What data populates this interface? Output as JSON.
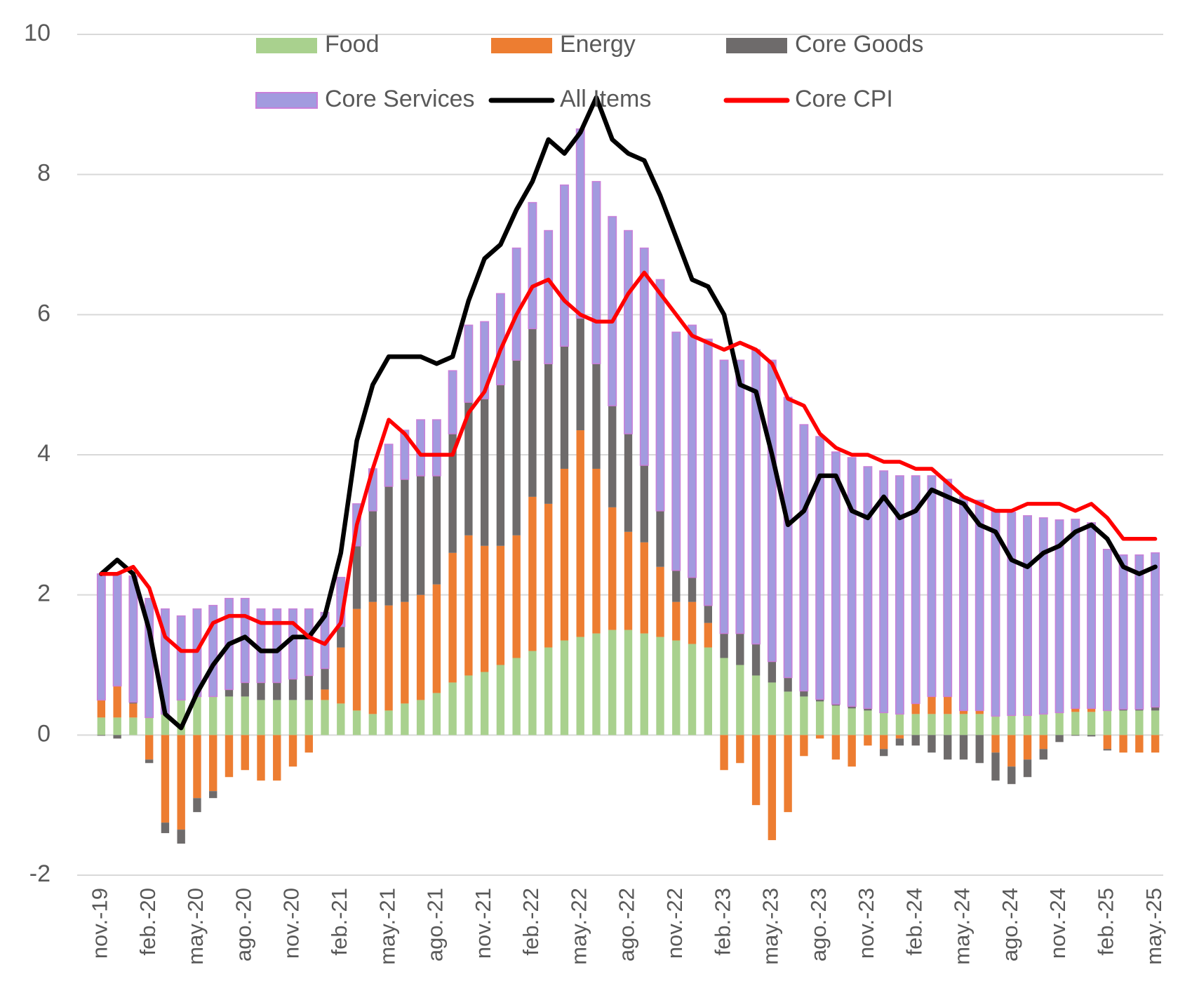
{
  "chart_data": {
    "type": "bar",
    "categories": [
      "nov.-19",
      null,
      null,
      "feb.-20",
      null,
      null,
      "may.-20",
      null,
      null,
      "ago.-20",
      null,
      null,
      "nov.-20",
      null,
      null,
      "feb.-21",
      null,
      null,
      "may.-21",
      null,
      null,
      "ago.-21",
      null,
      null,
      "nov.-21",
      null,
      null,
      "feb.-22",
      null,
      null,
      "may.-22",
      null,
      null,
      "ago.-22",
      null,
      null,
      "nov.-22",
      null,
      null,
      "feb.-23",
      null,
      null,
      "may.-23",
      null,
      null,
      "ago.-23",
      null,
      null,
      "nov.-23",
      null,
      null,
      "feb.-24",
      null,
      null,
      "may.-24",
      null,
      null,
      "ago.-24",
      null,
      null,
      "nov.-24",
      null,
      null,
      "feb.-25",
      null,
      null,
      "may.-25"
    ],
    "series": [
      {
        "name": "Food",
        "type": "bar",
        "color": "#a9d18e",
        "values": [
          0.25,
          0.25,
          0.25,
          0.25,
          0.3,
          0.5,
          0.55,
          0.55,
          0.55,
          0.55,
          0.5,
          0.5,
          0.5,
          0.5,
          0.5,
          0.45,
          0.35,
          0.3,
          0.35,
          0.45,
          0.5,
          0.6,
          0.75,
          0.85,
          0.9,
          1.0,
          1.1,
          1.2,
          1.25,
          1.35,
          1.4,
          1.45,
          1.5,
          1.5,
          1.45,
          1.4,
          1.35,
          1.3,
          1.25,
          1.1,
          1.0,
          0.85,
          0.75,
          0.62,
          0.55,
          0.48,
          0.42,
          0.38,
          0.35,
          0.32,
          0.3,
          0.3,
          0.3,
          0.3,
          0.3,
          0.3,
          0.27,
          0.28,
          0.28,
          0.3,
          0.32,
          0.33,
          0.33,
          0.35,
          0.35,
          0.35,
          0.35
        ]
      },
      {
        "name": "Energy",
        "type": "bar",
        "color": "#ed7d31",
        "values": [
          0.25,
          0.45,
          0.2,
          -0.35,
          -1.25,
          -1.35,
          -0.9,
          -0.8,
          -0.6,
          -0.5,
          -0.65,
          -0.65,
          -0.45,
          -0.25,
          0.15,
          0.8,
          1.45,
          1.6,
          1.5,
          1.45,
          1.5,
          1.55,
          1.85,
          2.0,
          1.8,
          1.7,
          1.75,
          2.2,
          2.05,
          2.45,
          2.95,
          2.35,
          1.75,
          1.4,
          1.3,
          1.0,
          0.55,
          0.6,
          0.35,
          -0.5,
          -0.4,
          -1.0,
          -1.5,
          -1.1,
          -0.3,
          -0.05,
          -0.35,
          -0.45,
          -0.15,
          -0.2,
          -0.05,
          0.15,
          0.25,
          0.25,
          0.05,
          0.05,
          -0.25,
          -0.45,
          -0.35,
          -0.2,
          0.0,
          0.05,
          0.05,
          -0.2,
          -0.25,
          -0.25,
          -0.25
        ]
      },
      {
        "name": "Core Goods",
        "type": "bar",
        "color": "#6e6b6b",
        "values": [
          -0.01,
          -0.05,
          0.02,
          -0.05,
          -0.15,
          -0.2,
          -0.2,
          -0.1,
          0.1,
          0.2,
          0.25,
          0.25,
          0.3,
          0.35,
          0.3,
          0.3,
          0.9,
          1.3,
          1.7,
          1.75,
          1.7,
          1.55,
          1.7,
          1.9,
          2.1,
          2.3,
          2.5,
          2.4,
          2.0,
          1.75,
          1.6,
          1.5,
          1.45,
          1.4,
          1.1,
          0.8,
          0.45,
          0.35,
          0.25,
          0.35,
          0.45,
          0.45,
          0.3,
          0.2,
          0.08,
          0.03,
          0.02,
          0.03,
          0.03,
          -0.1,
          -0.1,
          -0.15,
          -0.25,
          -0.35,
          -0.35,
          -0.4,
          -0.4,
          -0.25,
          -0.25,
          -0.15,
          -0.1,
          -0.01,
          -0.02,
          -0.02,
          0.02,
          0.02,
          0.05
        ]
      },
      {
        "name": "Core Services",
        "type": "bar",
        "color": "#a29bdf",
        "edge_color": "#c97fd9",
        "values": [
          1.8,
          1.6,
          1.8,
          1.7,
          1.5,
          1.2,
          1.25,
          1.3,
          1.3,
          1.2,
          1.05,
          1.05,
          1.0,
          0.95,
          0.8,
          0.7,
          0.6,
          0.6,
          0.6,
          0.7,
          0.8,
          0.8,
          0.9,
          1.1,
          1.1,
          1.3,
          1.6,
          1.8,
          1.9,
          2.3,
          2.7,
          2.6,
          2.7,
          2.9,
          3.1,
          3.3,
          3.4,
          3.6,
          3.8,
          3.9,
          3.9,
          4.2,
          4.3,
          4.0,
          3.8,
          3.75,
          3.6,
          3.55,
          3.45,
          3.45,
          3.4,
          3.25,
          3.15,
          3.1,
          3.05,
          3.0,
          2.95,
          2.9,
          2.85,
          2.8,
          2.75,
          2.7,
          2.65,
          2.3,
          2.2,
          2.2,
          2.2
        ]
      },
      {
        "name": "All Items",
        "type": "line",
        "color": "#000000",
        "values": [
          2.3,
          2.5,
          2.3,
          1.5,
          0.3,
          0.1,
          0.6,
          1.0,
          1.3,
          1.4,
          1.2,
          1.2,
          1.4,
          1.4,
          1.7,
          2.6,
          4.2,
          5.0,
          5.4,
          5.4,
          5.4,
          5.3,
          5.4,
          6.2,
          6.8,
          7.0,
          7.5,
          7.9,
          8.5,
          8.3,
          8.6,
          9.1,
          8.5,
          8.3,
          8.2,
          7.7,
          7.1,
          6.5,
          6.4,
          6.0,
          5.0,
          4.9,
          4.0,
          3.0,
          3.2,
          3.7,
          3.7,
          3.2,
          3.1,
          3.4,
          3.1,
          3.2,
          3.5,
          3.4,
          3.3,
          3.0,
          2.9,
          2.5,
          2.4,
          2.6,
          2.7,
          2.9,
          3.0,
          2.8,
          2.4,
          2.3,
          2.4
        ]
      },
      {
        "name": "Core CPI",
        "type": "line",
        "color": "#ff0000",
        "values": [
          2.3,
          2.3,
          2.4,
          2.1,
          1.4,
          1.2,
          1.2,
          1.6,
          1.7,
          1.7,
          1.6,
          1.6,
          1.6,
          1.4,
          1.3,
          1.6,
          3.0,
          3.8,
          4.5,
          4.3,
          4.0,
          4.0,
          4.0,
          4.6,
          4.9,
          5.5,
          6.0,
          6.4,
          6.5,
          6.2,
          6.0,
          5.9,
          5.9,
          6.3,
          6.6,
          6.3,
          6.0,
          5.7,
          5.6,
          5.5,
          5.6,
          5.5,
          5.3,
          4.8,
          4.7,
          4.3,
          4.1,
          4.0,
          4.0,
          3.9,
          3.9,
          3.8,
          3.8,
          3.6,
          3.4,
          3.3,
          3.2,
          3.2,
          3.3,
          3.3,
          3.3,
          3.2,
          3.3,
          3.1,
          2.8,
          2.8,
          2.8
        ]
      }
    ],
    "stacked": true,
    "ylim": [
      -2,
      10
    ],
    "yticks": [
      -2,
      0,
      2,
      4,
      6,
      8,
      10
    ],
    "grid": true,
    "legend": "top"
  }
}
